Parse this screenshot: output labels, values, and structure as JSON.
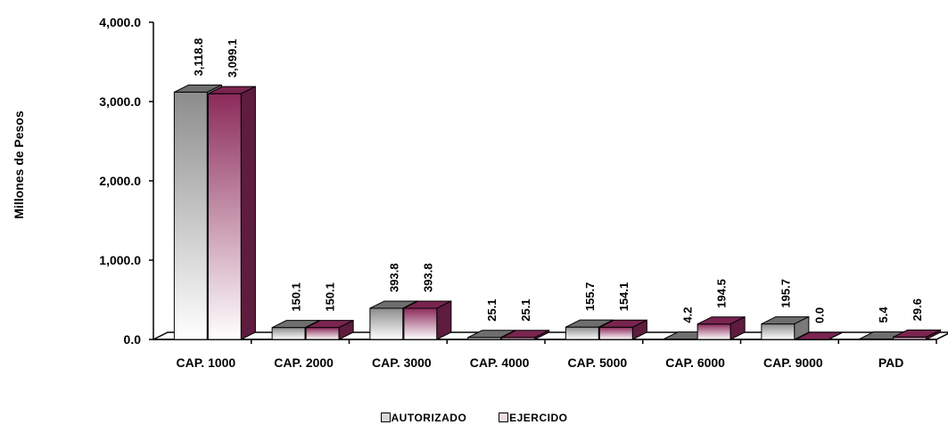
{
  "chart_data": {
    "type": "bar",
    "title": "",
    "xlabel": "",
    "ylabel": "Millones de Pesos",
    "ylim": [
      0,
      4000
    ],
    "yticks": [
      "0.0",
      "1,000.0",
      "2,000.0",
      "3,000.0",
      "4,000.0"
    ],
    "categories": [
      "CAP. 1000",
      "CAP. 2000",
      "CAP. 3000",
      "CAP. 4000",
      "CAP. 5000",
      "CAP. 6000",
      "CAP. 9000",
      "PAD"
    ],
    "series": [
      {
        "name": "AUTORIZADO",
        "color": "#8c8c8c",
        "values": [
          3118.8,
          150.1,
          393.8,
          25.1,
          155.7,
          4.2,
          195.7,
          5.4
        ],
        "labels": [
          "3,118.8",
          "150.1",
          "393.8",
          "25.1",
          "155.7",
          "4.2",
          "195.7",
          "5.4"
        ]
      },
      {
        "name": "EJERCIDO",
        "color": "#8c2a5a",
        "values": [
          3099.1,
          150.1,
          393.8,
          25.1,
          154.1,
          194.5,
          0.0,
          29.6
        ],
        "labels": [
          "3,099.1",
          "150.1",
          "393.8",
          "25.1",
          "154.1",
          "194.5",
          "0.0",
          "29.6"
        ]
      }
    ],
    "legend_position": "bottom",
    "grid": false,
    "style": "3d-column"
  }
}
